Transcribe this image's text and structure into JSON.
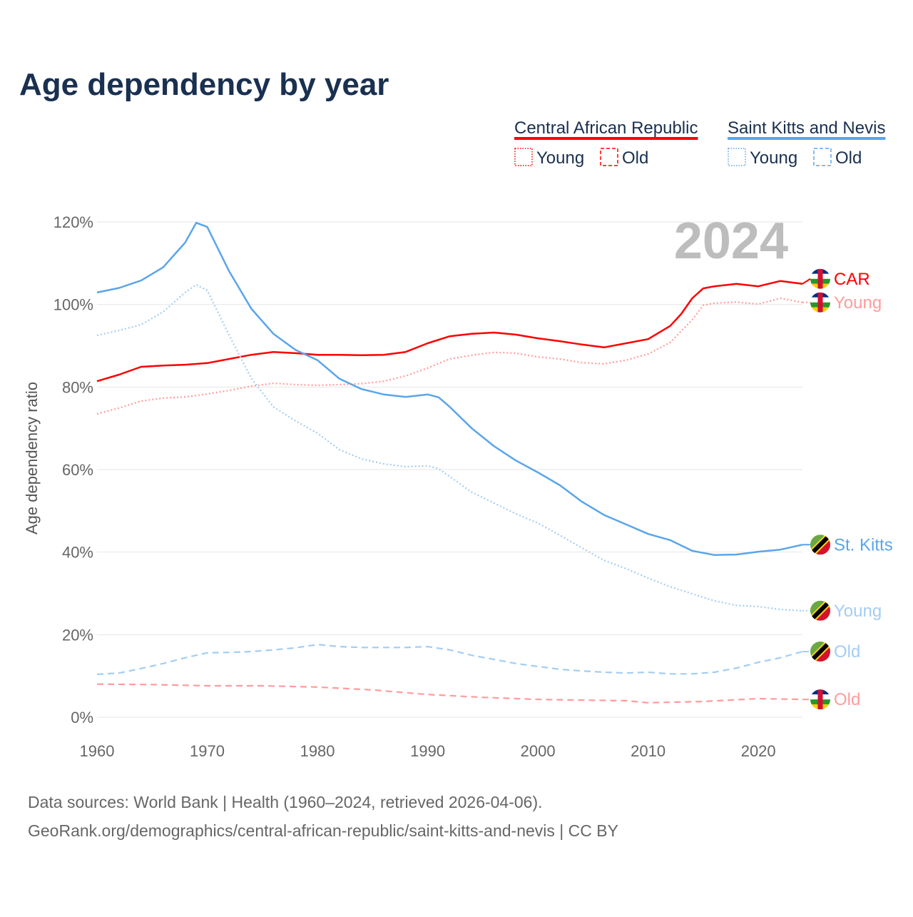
{
  "chart_data": {
    "type": "line",
    "title": "Age dependency by year",
    "ylabel": "Age dependency ratio",
    "xlabel": "",
    "xlim": [
      1960,
      2024
    ],
    "ylim": [
      0,
      120
    ],
    "x_ticks": [
      "1960",
      "1970",
      "1980",
      "1990",
      "2000",
      "2010",
      "2020"
    ],
    "y_ticks": [
      "0%",
      "20%",
      "40%",
      "60%",
      "80%",
      "100%",
      "120%"
    ],
    "grid": true,
    "year_watermark": "2024",
    "legend": {
      "placement": "top-right",
      "groups": [
        {
          "country": "Central African Republic",
          "color": "#ff0000",
          "items": [
            "Young",
            "Old"
          ]
        },
        {
          "country": "Saint Kitts and Nevis",
          "color": "#5aa5ea",
          "items": [
            "Young",
            "Old"
          ]
        }
      ]
    },
    "series": [
      {
        "name": "CAR",
        "label": "CAR",
        "country": "Central African Republic",
        "kind": "total",
        "color": "#ff0000",
        "style": "solid",
        "x": [
          1960,
          1962,
          1964,
          1966,
          1968,
          1970,
          1972,
          1974,
          1976,
          1978,
          1980,
          1982,
          1984,
          1986,
          1988,
          1990,
          1992,
          1994,
          1996,
          1998,
          2000,
          2002,
          2004,
          2006,
          2008,
          2010,
          2012,
          2013,
          2014,
          2015,
          2016,
          2018,
          2020,
          2022,
          2024
        ],
        "y": [
          81.4,
          83,
          84.9,
          85.2,
          85.4,
          85.8,
          86.8,
          87.8,
          88.5,
          88.2,
          87.8,
          87.8,
          87.7,
          87.8,
          88.5,
          90.6,
          92.3,
          92.9,
          93.2,
          92.7,
          91.8,
          91.1,
          90.3,
          89.6,
          90.6,
          91.6,
          94.8,
          97.7,
          101.5,
          103.9,
          104.4,
          105,
          104.4,
          105.7,
          105
        ]
      },
      {
        "name": "CAR Young",
        "label": "Young",
        "country": "Central African Republic",
        "kind": "young",
        "color": "#ff9c9c",
        "style": "dotted",
        "x": [
          1960,
          1962,
          1964,
          1966,
          1968,
          1970,
          1972,
          1974,
          1976,
          1978,
          1980,
          1982,
          1984,
          1986,
          1988,
          1990,
          1992,
          1994,
          1996,
          1998,
          2000,
          2002,
          2004,
          2006,
          2008,
          2010,
          2012,
          2014,
          2015,
          2016,
          2018,
          2020,
          2022,
          2024
        ],
        "y": [
          73.5,
          74.9,
          76.6,
          77.3,
          77.6,
          78.3,
          79.2,
          80.2,
          80.9,
          80.6,
          80.4,
          80.6,
          80.8,
          81.4,
          82.7,
          84.6,
          86.8,
          87.7,
          88.4,
          88.2,
          87.3,
          86.8,
          85.9,
          85.6,
          86.5,
          88,
          90.8,
          96.3,
          99.8,
          100.3,
          100.6,
          100.1,
          101.5,
          100.5
        ]
      },
      {
        "name": "CAR Old",
        "label": "Old",
        "country": "Central African Republic",
        "kind": "old",
        "color": "#ff9c9c",
        "style": "dashed",
        "x": [
          1960,
          1965,
          1970,
          1975,
          1980,
          1985,
          1990,
          1995,
          2000,
          2005,
          2008,
          2010,
          2015,
          2020,
          2024
        ],
        "y": [
          8,
          7.9,
          7.6,
          7.6,
          7.3,
          6.6,
          5.5,
          4.8,
          4.3,
          4.1,
          4,
          3.5,
          3.8,
          4.5,
          4.3
        ]
      },
      {
        "name": "St. Kitts",
        "label": "St. Kitts",
        "country": "Saint Kitts and Nevis",
        "kind": "total",
        "color": "#5aa5ea",
        "style": "solid",
        "x": [
          1960,
          1962,
          1964,
          1966,
          1968,
          1969,
          1970,
          1972,
          1974,
          1976,
          1978,
          1980,
          1982,
          1984,
          1986,
          1988,
          1990,
          1991,
          1992,
          1994,
          1996,
          1998,
          2000,
          2002,
          2004,
          2006,
          2008,
          2010,
          2012,
          2014,
          2016,
          2018,
          2020,
          2022,
          2024
        ],
        "y": [
          102.9,
          104,
          105.8,
          109,
          115,
          119.8,
          118.8,
          108,
          99,
          92.9,
          89,
          86.5,
          82,
          79.5,
          78.2,
          77.6,
          78.2,
          77.5,
          75.2,
          70,
          65.7,
          62.2,
          59.3,
          56.2,
          52.2,
          49,
          46.7,
          44.4,
          42.9,
          40.3,
          39.3,
          39.4,
          40.1,
          40.6,
          41.8
        ]
      },
      {
        "name": "St. Kitts Young",
        "label": "Young",
        "country": "Saint Kitts and Nevis",
        "kind": "young",
        "color": "#a3cdf3",
        "style": "dotted",
        "x": [
          1960,
          1962,
          1964,
          1966,
          1968,
          1969,
          1970,
          1972,
          1974,
          1976,
          1978,
          1980,
          1982,
          1984,
          1986,
          1988,
          1990,
          1991,
          1992,
          1994,
          1996,
          1998,
          2000,
          2002,
          2004,
          2006,
          2008,
          2010,
          2012,
          2014,
          2016,
          2018,
          2020,
          2022,
          2024
        ],
        "y": [
          92.5,
          93.7,
          95.1,
          98.2,
          102.9,
          104.8,
          103.4,
          92.5,
          82.1,
          75.2,
          71.8,
          68.8,
          64.8,
          62.6,
          61.4,
          60.7,
          60.9,
          60.2,
          58.3,
          54.5,
          51.9,
          49.3,
          47,
          44.1,
          41,
          38,
          36,
          33.7,
          31.6,
          29.9,
          28.2,
          27.1,
          26.8,
          26.1,
          25.8
        ]
      },
      {
        "name": "St. Kitts Old",
        "label": "Old",
        "country": "Saint Kitts and Nevis",
        "kind": "old",
        "color": "#a3cdf3",
        "style": "dashed",
        "x": [
          1960,
          1962,
          1964,
          1966,
          1968,
          1970,
          1972,
          1974,
          1976,
          1978,
          1980,
          1982,
          1984,
          1986,
          1988,
          1990,
          1992,
          1994,
          1996,
          1998,
          2000,
          2002,
          2004,
          2006,
          2008,
          2010,
          2012,
          2014,
          2016,
          2018,
          2020,
          2022,
          2024
        ],
        "y": [
          10.4,
          10.7,
          11.8,
          13,
          14.4,
          15.6,
          15.7,
          15.9,
          16.3,
          16.8,
          17.6,
          17.1,
          16.9,
          16.9,
          16.9,
          17.1,
          16.3,
          15,
          14,
          13,
          12.3,
          11.6,
          11.2,
          10.9,
          10.7,
          10.9,
          10.5,
          10.5,
          10.9,
          11.9,
          13.3,
          14.4,
          15.9
        ]
      }
    ]
  },
  "footer": {
    "line1": "Data sources: World Bank | Health (1960–2024, retrieved 2026-04-06).",
    "line2": "GeoRank.org/demographics/central-african-republic/saint-kitts-and-nevis | CC BY"
  }
}
